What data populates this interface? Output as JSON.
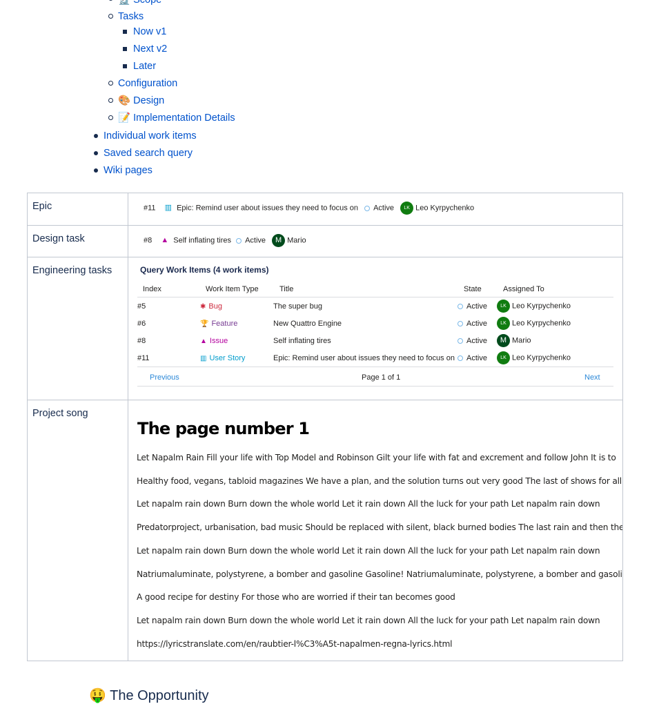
{
  "outline": {
    "sub_items": [
      {
        "label": "Scope",
        "emoji": "🔬"
      },
      {
        "label": "Tasks",
        "children": [
          "Now v1",
          "Next v2",
          "Later"
        ]
      },
      {
        "label": "Configuration"
      },
      {
        "label": "Design",
        "emoji": "🎨"
      },
      {
        "label": "Implementation Details",
        "emoji": "📝"
      }
    ],
    "top_items": [
      "Individual work items",
      "Saved search query",
      "Wiki pages"
    ]
  },
  "table": {
    "rows": [
      {
        "label": "Epic"
      },
      {
        "label": "Design task"
      },
      {
        "label": "Engineering tasks"
      },
      {
        "label": "Project song"
      }
    ],
    "epic": {
      "id": "#11",
      "icon": "book-icon",
      "title": "Epic: Remind user about issues they need to focus on",
      "state": "Active",
      "assignee": "Leo Kyrpychenko",
      "initials": "LK"
    },
    "design": {
      "id": "#8",
      "icon": "cone-icon",
      "title": "Self inflating tires",
      "state": "Active",
      "assignee": "Mario",
      "initials": "M"
    },
    "query": {
      "title": "Query Work Items (4 work items)",
      "columns": [
        "Index",
        "Work Item Type",
        "Title",
        "State",
        "Assigned To"
      ],
      "items": [
        {
          "index": "#5",
          "type": "Bug",
          "type_color": "#cc293d",
          "icon": "bug-icon",
          "title": "The super bug",
          "state": "Active",
          "assignee": "Leo Kyrpychenko",
          "initials": "LK"
        },
        {
          "index": "#6",
          "type": "Feature",
          "type_color": "#773b93",
          "icon": "trophy-icon",
          "title": "New Quattro Engine",
          "state": "Active",
          "assignee": "Leo Kyrpychenko",
          "initials": "LK"
        },
        {
          "index": "#8",
          "type": "Issue",
          "type_color": "#b4009e",
          "icon": "cone-icon",
          "title": "Self inflating tires",
          "state": "Active",
          "assignee": "Mario",
          "initials": "M"
        },
        {
          "index": "#11",
          "type": "User Story",
          "type_color": "#009ccc",
          "icon": "book-icon",
          "title": "Epic: Remind user about issues they need to focus on",
          "state": "Active",
          "assignee": "Leo Kyrpychenko",
          "initials": "LK"
        }
      ],
      "previous": "Previous",
      "page": "Page 1 of 1",
      "next": "Next"
    },
    "song": {
      "heading": "The page number 1",
      "lines": [
        "Let Napalm Rain Fill your life with Top Model and Robinson Gilt your life with fat and excrement and follow John It is to",
        "Healthy food, vegans, tabloid magazines We have a plan, and the solution turns out very good The last of shows for all",
        "Let napalm rain down Burn down the whole world Let it rain down All the luck for your path Let napalm rain down",
        "Predatorproject, urbanisation, bad music Should be replaced with silent, black burned bodies The last rain and then the",
        "Let napalm rain down Burn down the whole world Let it rain down All the luck for your path Let napalm rain down",
        "Natriumaluminate, polystyrene, a bomber and gasoline Gasoline! Natriumaluminate, polystyrene, a bomber and gasolin",
        "A good recipe for destiny For those who are worried if their tan becomes good",
        "Let napalm rain down Burn down the whole world Let it rain down All the luck for your path Let napalm rain down",
        "https://lyricstranslate.com/en/raubtier-l%C3%A5t-napalmen-regna-lyrics.html"
      ]
    }
  },
  "next_section": {
    "emoji": "🤑",
    "title": "The Opportunity"
  }
}
